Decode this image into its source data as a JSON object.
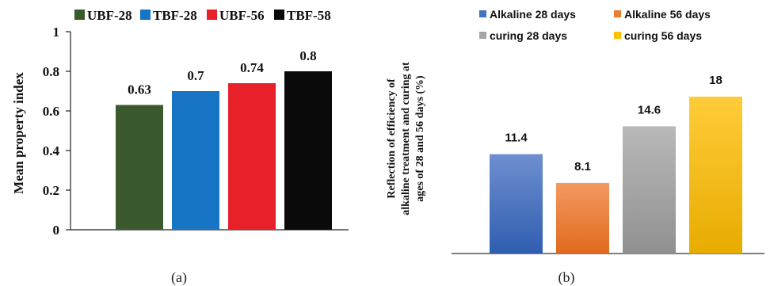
{
  "chart_data": [
    {
      "type": "bar",
      "panel_caption": "(a)",
      "ylabel": "Mean property index",
      "ylim": [
        0,
        1
      ],
      "yticks": [
        "0",
        "0.2",
        "0.4",
        "0.6",
        "0.8",
        "1"
      ],
      "legend_position": "top",
      "series": [
        {
          "name": "UBF-28",
          "value": 0.63,
          "label": "0.63",
          "color": "#3a5a2e"
        },
        {
          "name": "TBF-28",
          "value": 0.7,
          "label": "0.7",
          "color": "#1874c4"
        },
        {
          "name": "UBF-56",
          "value": 0.74,
          "label": "0.74",
          "color": "#e8202a"
        },
        {
          "name": "TBF-58",
          "value": 0.8,
          "label": "0.8",
          "color": "#0a0a0a"
        }
      ]
    },
    {
      "type": "bar",
      "panel_caption": "(b)",
      "ylabel_lines": [
        "Reflection of efficiency of",
        "alkaline treatment and curing at",
        "ages of 28 and 56 days (%)"
      ],
      "ylim": [
        0,
        25
      ],
      "legend_position": "top",
      "series": [
        {
          "name": "Alkaline 28 days",
          "value": 11.4,
          "label": "11.4",
          "color": "#4472c4"
        },
        {
          "name": "Alkaline 56 days",
          "value": 8.1,
          "label": "8.1",
          "color": "#ed7d31"
        },
        {
          "name": "curing 28 days",
          "value": 14.6,
          "label": "14.6",
          "color": "#a5a5a5"
        },
        {
          "name": "curing 56 days",
          "value": 18,
          "label": "18",
          "color": "#ffc000"
        }
      ]
    }
  ]
}
